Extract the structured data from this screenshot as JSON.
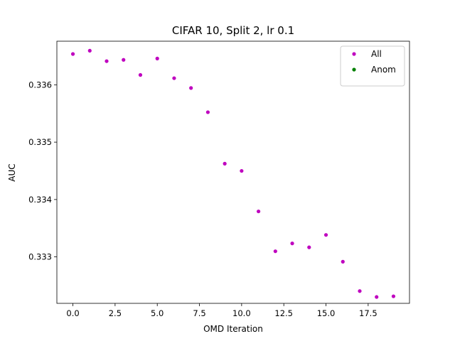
{
  "chart_data": {
    "type": "scatter",
    "title": "CIFAR 10, Split 2, lr 0.1",
    "xlabel": "OMD Iteration",
    "ylabel": "AUC",
    "xlim": [
      -0.95,
      19.95
    ],
    "ylim": [
      0.33219,
      0.33676
    ],
    "xticks": [
      0.0,
      2.5,
      5.0,
      7.5,
      10.0,
      12.5,
      15.0,
      17.5
    ],
    "xtick_labels": [
      "0.0",
      "2.5",
      "5.0",
      "7.5",
      "10.0",
      "12.5",
      "15.0",
      "17.5"
    ],
    "yticks": [
      0.333,
      0.334,
      0.335,
      0.336
    ],
    "ytick_labels": [
      "0.333",
      "0.334",
      "0.335",
      "0.336"
    ],
    "grid": false,
    "legend_position": "top-right",
    "series": [
      {
        "name": "All",
        "color": "#bf00bf",
        "x": [
          0,
          1,
          2,
          3,
          4,
          5,
          6,
          7,
          8,
          9,
          10,
          11,
          12,
          13,
          14,
          15,
          16,
          17,
          18,
          19
        ],
        "y": [
          0.336537,
          0.336594,
          0.336412,
          0.336435,
          0.336172,
          0.336458,
          0.336115,
          0.335944,
          0.335522,
          0.334625,
          0.334499,
          0.333793,
          0.333098,
          0.333235,
          0.333167,
          0.333383,
          0.332916,
          0.332404,
          0.332301,
          0.332313
        ]
      },
      {
        "name": "Anom",
        "color": "#008000",
        "x": [],
        "y": []
      }
    ]
  }
}
